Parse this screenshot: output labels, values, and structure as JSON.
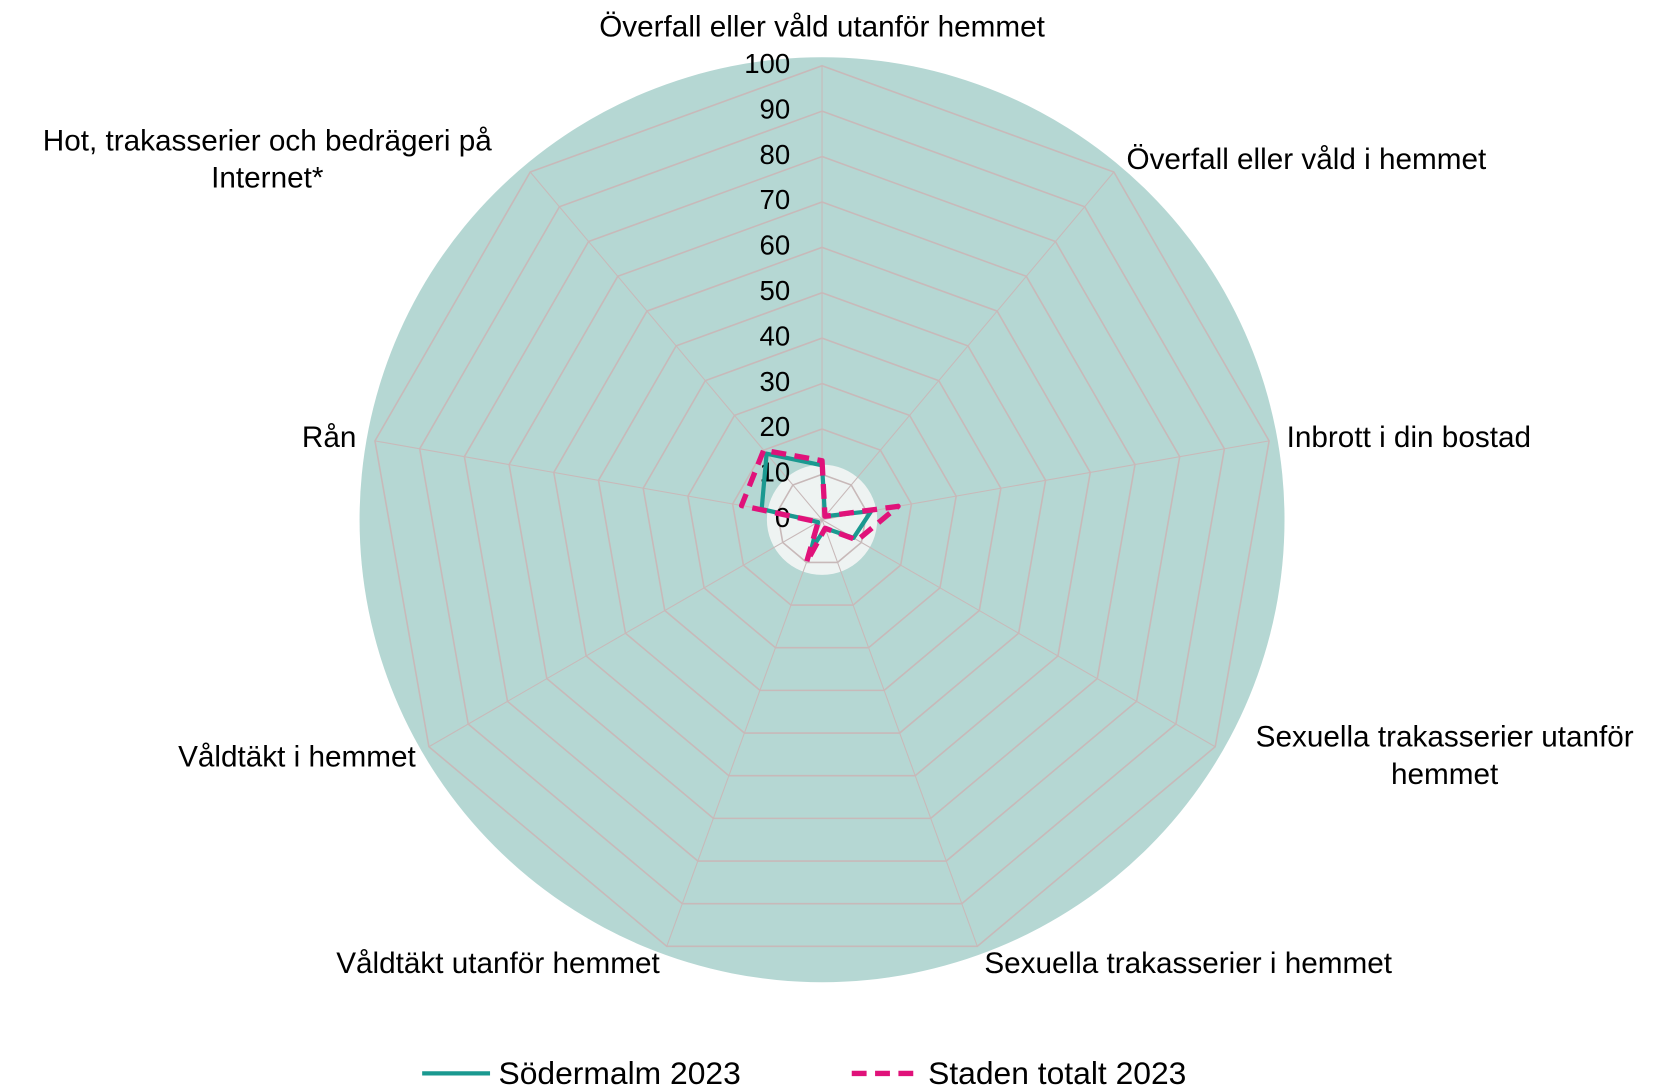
{
  "chart_data": {
    "type": "radar",
    "categories": [
      "Överfall eller våld utanför hemmet",
      "Överfall eller våld i hemmet",
      "Inbrott i din bostad",
      "Sexuella trakasserier utanför hemmet",
      "Sexuella trakasserier i hemmet",
      "Våldtäkt utanför hemmet",
      "Våldtäkt i hemmet",
      "Rån",
      "Hot, trakasserier och bedrägeri på Internet*"
    ],
    "series": [
      {
        "name": "Södermalm 2023",
        "color": "#1a9990",
        "values": [
          12,
          1,
          11,
          8,
          2,
          7,
          1,
          13.5,
          19
        ]
      },
      {
        "name": "Staden totalt 2023",
        "color": "#e0127a",
        "values": [
          13,
          1,
          17,
          9,
          2,
          10,
          1,
          18,
          20
        ]
      }
    ],
    "ylim": [
      0,
      100
    ],
    "yticks": [
      0,
      10,
      20,
      30,
      40,
      50,
      60,
      70,
      80,
      90,
      100
    ],
    "grid": true,
    "background": "#b5d7d3",
    "legend": "bottom"
  }
}
